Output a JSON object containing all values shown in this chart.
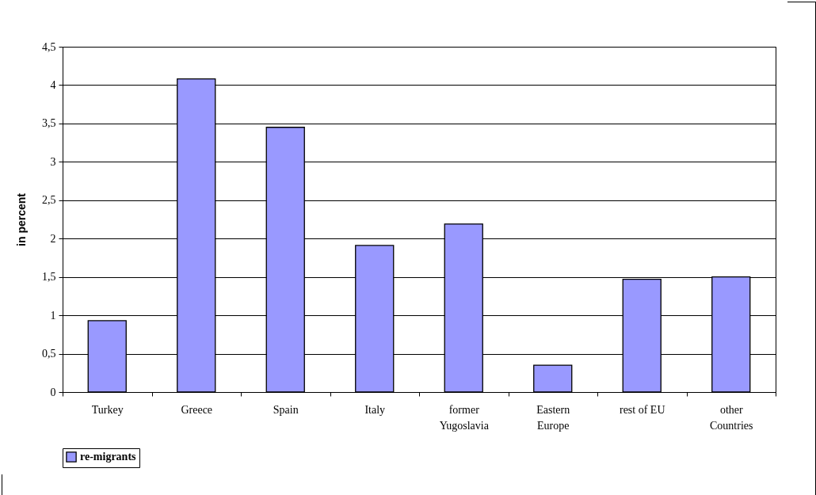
{
  "chart_data": {
    "type": "bar",
    "ylabel": "in percent",
    "categories": [
      "Turkey",
      "Greece",
      "Spain",
      "Italy",
      "former Yugoslavia",
      "Eastern Europe",
      "rest of EU",
      "other Countries"
    ],
    "series": [
      {
        "name": "re-migrants",
        "color": "#9999ff",
        "values": [
          0.93,
          4.08,
          3.45,
          1.91,
          2.19,
          0.35,
          1.47,
          1.5
        ]
      }
    ],
    "ylim": [
      0,
      4.5
    ],
    "yticks": [
      0,
      {
        "value": 0.5,
        "label": "0,5"
      },
      1,
      {
        "value": 1.5,
        "label": "1,5"
      },
      2,
      {
        "value": 2.5,
        "label": "2,5"
      },
      3,
      {
        "value": 3.5,
        "label": "3,5"
      },
      4,
      {
        "value": 4.5,
        "label": "4,5"
      }
    ],
    "grid": "y",
    "legend": "bottom"
  }
}
